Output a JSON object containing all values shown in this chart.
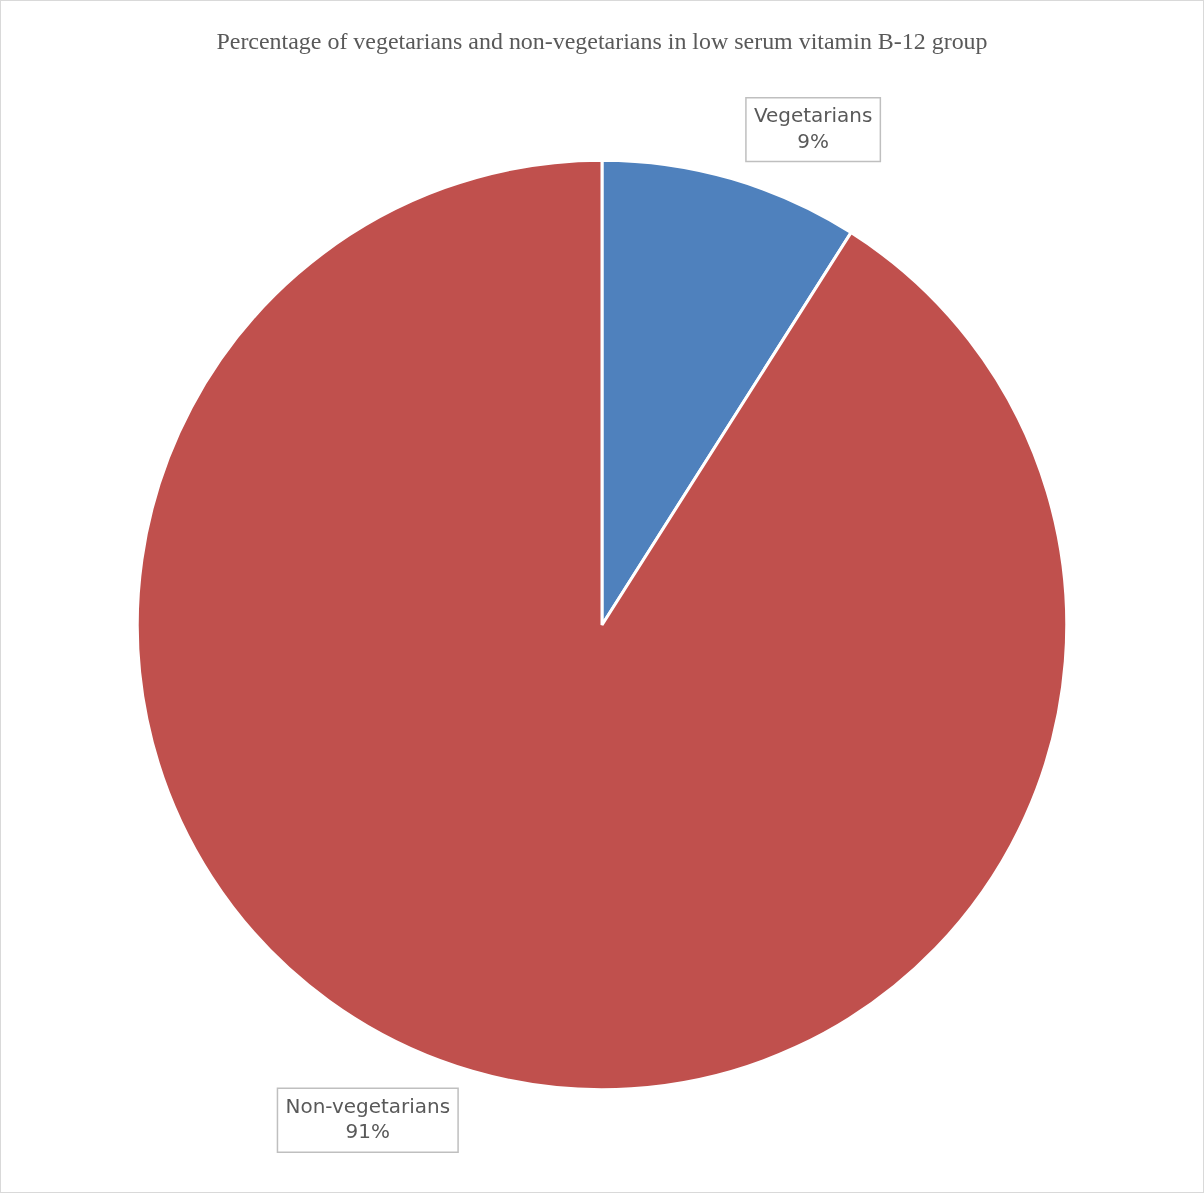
{
  "chart_data": {
    "type": "pie",
    "title": "Percentage of vegetarians and non-vegetarians in low serum vitamin B-12 group",
    "categories": [
      "Vegetarians",
      "Non-vegetarians"
    ],
    "values": [
      9,
      91
    ],
    "colors": [
      "#4f81bd",
      "#c0504d"
    ],
    "value_labels": [
      "9%",
      "91%"
    ],
    "legend": false
  }
}
